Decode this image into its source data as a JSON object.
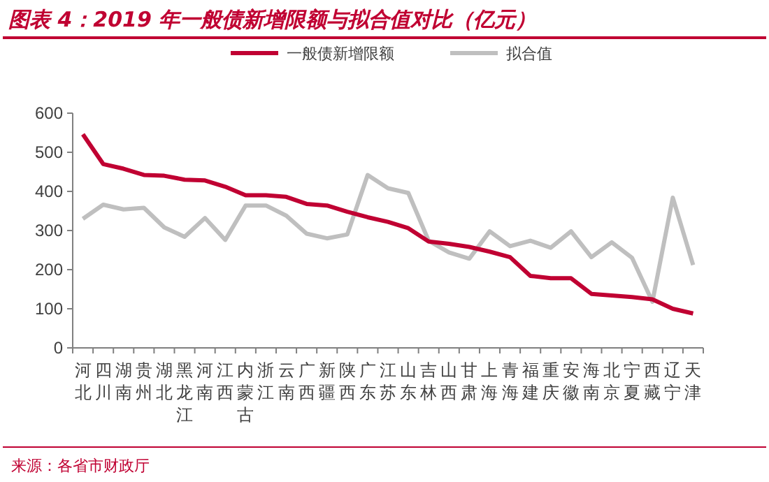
{
  "chart_data": {
    "type": "line",
    "title": "图表 4：2019 年一般债新增限额与拟合值对比（亿元）",
    "categories": [
      "河北",
      "四川",
      "湖南",
      "贵州",
      "湖北",
      "黑龙江",
      "河南",
      "江西",
      "内蒙古",
      "浙江",
      "云南",
      "广西",
      "新疆",
      "陕西",
      "广东",
      "江苏",
      "山东",
      "吉林",
      "山西",
      "甘肃",
      "上海",
      "青海",
      "福建",
      "重庆",
      "安徽",
      "海南",
      "北京",
      "宁夏",
      "西藏",
      "辽宁",
      "天津"
    ],
    "series": [
      {
        "name": "一般债新增限额",
        "color": "#c00032",
        "values": [
          546,
          470,
          458,
          442,
          440,
          430,
          428,
          412,
          390,
          390,
          386,
          368,
          364,
          348,
          334,
          322,
          306,
          272,
          266,
          258,
          246,
          232,
          184,
          178,
          178,
          138,
          134,
          130,
          124,
          100,
          88
        ]
      },
      {
        "name": "拟合值",
        "color": "#bfbfbf",
        "values": [
          330,
          366,
          354,
          358,
          308,
          284,
          332,
          276,
          364,
          364,
          338,
          292,
          280,
          290,
          442,
          408,
          396,
          274,
          244,
          228,
          298,
          260,
          274,
          256,
          298,
          232,
          270,
          230,
          118,
          384,
          212
        ]
      }
    ],
    "ylim": [
      0,
      600
    ],
    "yticks": [
      0,
      100,
      200,
      300,
      400,
      500,
      600
    ],
    "grid": false,
    "legend": "top",
    "line_style": "solid",
    "marker": "none",
    "annotations": [
      "来源：各省市财政厅"
    ]
  }
}
